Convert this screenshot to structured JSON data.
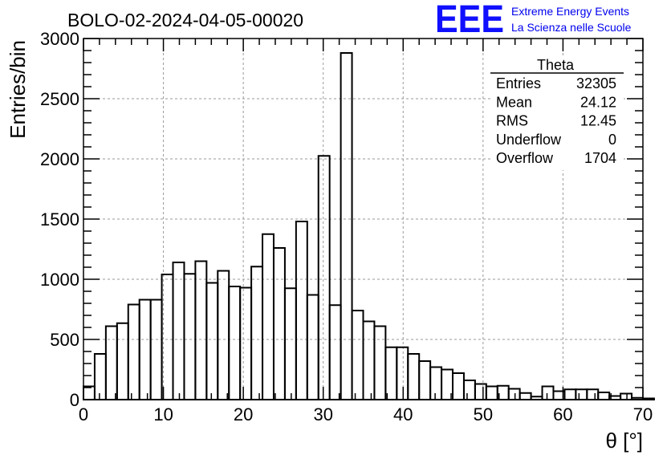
{
  "chart_data": {
    "type": "bar",
    "title": "BOLO-02-2024-04-05-00020",
    "xlabel": "θ [°]",
    "ylabel": "Entries/bin",
    "xlim": [
      0,
      70
    ],
    "ylim": [
      0,
      3000
    ],
    "x_ticks": [
      0,
      10,
      20,
      30,
      40,
      50,
      60,
      70
    ],
    "y_ticks": [
      0,
      500,
      1000,
      1500,
      2000,
      2500,
      3000
    ],
    "grid": true,
    "bin_width": 1.4,
    "values": [
      110,
      380,
      610,
      635,
      790,
      830,
      830,
      1040,
      1140,
      1045,
      1150,
      970,
      1070,
      940,
      930,
      1105,
      1375,
      1260,
      925,
      1480,
      870,
      2025,
      785,
      2880,
      740,
      650,
      610,
      435,
      435,
      380,
      320,
      270,
      250,
      220,
      160,
      130,
      110,
      115,
      90,
      55,
      25,
      110,
      70,
      85,
      85,
      85,
      60,
      30,
      50,
      15,
      10
    ],
    "stats_box": {
      "name": "Theta",
      "rows": [
        {
          "label": "Entries",
          "value": "32305"
        },
        {
          "label": "Mean",
          "value": "24.12"
        },
        {
          "label": "RMS",
          "value": "12.45"
        },
        {
          "label": "Underflow",
          "value": "0"
        },
        {
          "label": "Overflow",
          "value": "1704"
        }
      ]
    }
  },
  "logo": {
    "mark": "EEE",
    "line1": "Extreme Energy Events",
    "line2": "La Scienza nelle Scuole",
    "color": "#0000ee"
  }
}
